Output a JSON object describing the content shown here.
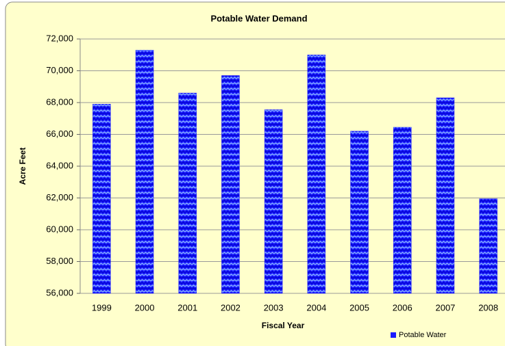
{
  "chart_data": {
    "type": "bar",
    "title": "Potable Water Demand",
    "x_label": "Fiscal Year",
    "y_label": "Acre Feet",
    "categories": [
      "1999",
      "2000",
      "2001",
      "2002",
      "2003",
      "2004",
      "2005",
      "2006",
      "2007",
      "2008"
    ],
    "series": [
      {
        "name": "Potable Water",
        "color": "#1a1aff",
        "values": [
          67900,
          71300,
          68600,
          69700,
          67550,
          71000,
          66200,
          66450,
          68300,
          61950
        ]
      }
    ],
    "ylim": [
      56000,
      72000
    ],
    "yticks": [
      {
        "value": 56000,
        "label": "56,000"
      },
      {
        "value": 58000,
        "label": "58,000"
      },
      {
        "value": 60000,
        "label": "60,000"
      },
      {
        "value": 62000,
        "label": "62,000"
      },
      {
        "value": 64000,
        "label": "64,000"
      },
      {
        "value": 66000,
        "label": "66,000"
      },
      {
        "value": 68000,
        "label": "68,000"
      },
      {
        "value": 70000,
        "label": "70,000"
      },
      {
        "value": 72000,
        "label": "72,000"
      }
    ],
    "grid": true,
    "legend": "bottom-right"
  }
}
